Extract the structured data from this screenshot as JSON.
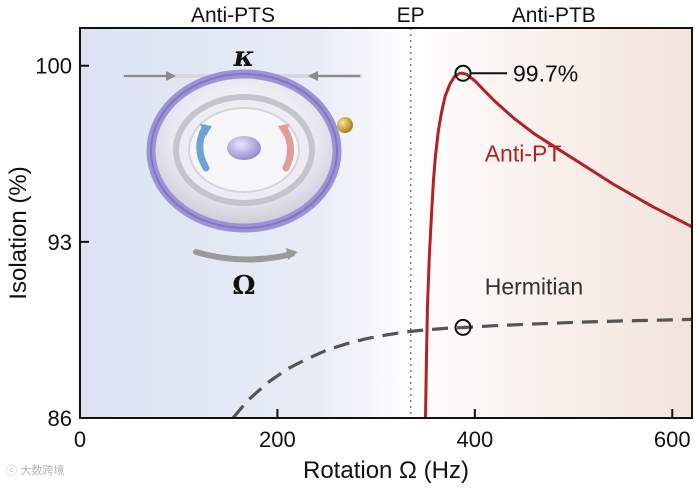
{
  "chart_data": {
    "type": "line",
    "title": "",
    "xlabel": "Rotation Ω (Hz)",
    "ylabel": "Isolation (%)",
    "xlim": [
      0,
      620
    ],
    "ylim": [
      86,
      101.5
    ],
    "xticks": [
      0,
      200,
      400,
      600
    ],
    "yticks": [
      86,
      93,
      100
    ],
    "regions": [
      {
        "name": "Anti-PTS",
        "range": [
          0,
          335
        ],
        "color": "#dbe3f3"
      },
      {
        "name": "Anti-PTB",
        "range": [
          335,
          620
        ],
        "color": "#f3e3dc"
      }
    ],
    "ep": {
      "label": "EP",
      "x": 335
    },
    "series": [
      {
        "name": "Anti-PT",
        "color": "#b52025",
        "style": "solid",
        "x": [
          350,
          351,
          352,
          354,
          356,
          358,
          360,
          363,
          366,
          370,
          375,
          380,
          385,
          388,
          392,
          400,
          410,
          420,
          440,
          460,
          480,
          500,
          520,
          540,
          560,
          580,
          600,
          620
        ],
        "y": [
          86,
          88.5,
          90.5,
          92.5,
          94,
          95.4,
          96.4,
          97.4,
          98.1,
          98.8,
          99.3,
          99.6,
          99.7,
          99.7,
          99.65,
          99.4,
          99.0,
          98.6,
          97.9,
          97.3,
          96.8,
          96.3,
          95.8,
          95.3,
          94.85,
          94.4,
          94.0,
          93.6
        ]
      },
      {
        "name": "Hermitian",
        "color": "#555555",
        "style": "dashed",
        "x": [
          155,
          170,
          190,
          210,
          230,
          250,
          270,
          290,
          310,
          330,
          350,
          370,
          390,
          420,
          450,
          500,
          550,
          600,
          620
        ],
        "y": [
          86,
          86.7,
          87.4,
          87.95,
          88.35,
          88.7,
          88.95,
          89.15,
          89.3,
          89.42,
          89.5,
          89.56,
          89.6,
          89.67,
          89.72,
          89.8,
          89.86,
          89.9,
          89.92
        ]
      }
    ],
    "markers": [
      {
        "series": "Anti-PT",
        "x": 388,
        "y": 99.7,
        "label": "99.7%"
      },
      {
        "series": "Hermitian",
        "x": 388,
        "y": 89.6
      }
    ],
    "inset_labels": {
      "kappa": "κ",
      "omega": "Ω"
    }
  }
}
